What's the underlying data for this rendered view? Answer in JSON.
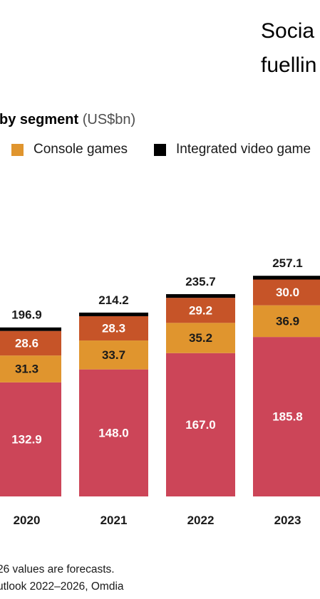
{
  "heading": {
    "line1": "Socia",
    "line2": "fuellin"
  },
  "subtitle": {
    "bold": "by segment",
    "unit": "(US$bn)"
  },
  "legend": [
    {
      "label": "Console games",
      "color": "#e0952e"
    },
    {
      "label": "Integrated video game",
      "color": "#000000"
    }
  ],
  "footnotes": [
    "26 values are forecasts.",
    "utlook 2022–2026, Omdia"
  ],
  "colors": {
    "segment_1": "#cc4558",
    "segment_2": "#e0952e",
    "segment_3": "#c65428",
    "segment_4": "#000000"
  },
  "chart_data": {
    "type": "bar",
    "stacked": true,
    "categories": [
      "2020",
      "2021",
      "2022",
      "2023"
    ],
    "series": [
      {
        "values": [
          132.9,
          148.0,
          167.0,
          185.8
        ]
      },
      {
        "name": "Console games",
        "values": [
          31.3,
          33.7,
          35.2,
          36.9
        ]
      },
      {
        "values": [
          28.6,
          28.3,
          29.2,
          30.0
        ]
      },
      {
        "name": "Integrated video game",
        "values": [
          4.1,
          4.2,
          4.3,
          4.4
        ]
      }
    ],
    "totals": [
      "196.9",
      "214.2",
      "235.7",
      "257.1"
    ],
    "value_labels": [
      [
        "132.9",
        "148.0",
        "167.0",
        "185.8"
      ],
      [
        "31.3",
        "33.7",
        "35.2",
        "36.9"
      ],
      [
        "28.6",
        "28.3",
        "29.2",
        "30.0"
      ]
    ],
    "ylim": [
      0,
      270
    ],
    "grid": false
  }
}
